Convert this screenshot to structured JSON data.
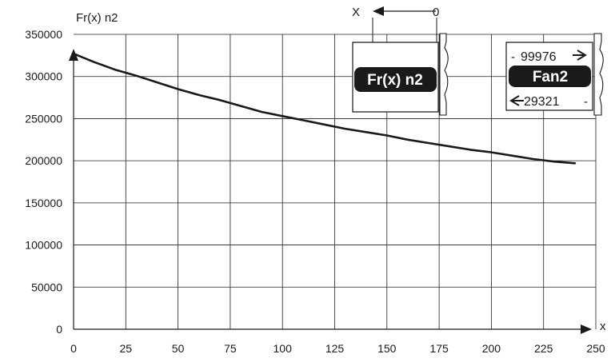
{
  "chart_data": {
    "type": "line",
    "ylabel": "Fr(x) n2",
    "xlabel": "x",
    "xlim": [
      0,
      250
    ],
    "ylim": [
      0,
      350000
    ],
    "x_ticks": [
      "0",
      "25",
      "50",
      "75",
      "100",
      "125",
      "150",
      "175",
      "200",
      "225",
      "250"
    ],
    "y_ticks": [
      "0",
      "50000",
      "100000",
      "150000",
      "200000",
      "250000",
      "300000",
      "350000"
    ],
    "grid": true,
    "series": [
      {
        "x": [
          0,
          10,
          20,
          30,
          40,
          50,
          60,
          70,
          80,
          90,
          100,
          110,
          120,
          130,
          140,
          150,
          160,
          170,
          180,
          190,
          200,
          210,
          220,
          230,
          240
        ],
        "y": [
          327000,
          317000,
          308000,
          301000,
          293000,
          285000,
          278000,
          272000,
          265000,
          258000,
          253000,
          248000,
          243000,
          238000,
          234000,
          230000,
          225000,
          221000,
          217000,
          213000,
          210000,
          206000,
          202000,
          199000,
          197000
        ]
      }
    ]
  },
  "annotations": {
    "axis_marker": {
      "x_label": "X",
      "zero_label": "0"
    },
    "display_box": {
      "label": "Fr(x) n2"
    },
    "fan_box": {
      "top_value": "99976",
      "name": "Fan2",
      "bottom_value": "29321"
    }
  },
  "colors": {
    "line": "#1a1a1a",
    "grid": "#222222",
    "label_bg": "#1a1a1a",
    "label_fg": "#ffffff"
  }
}
